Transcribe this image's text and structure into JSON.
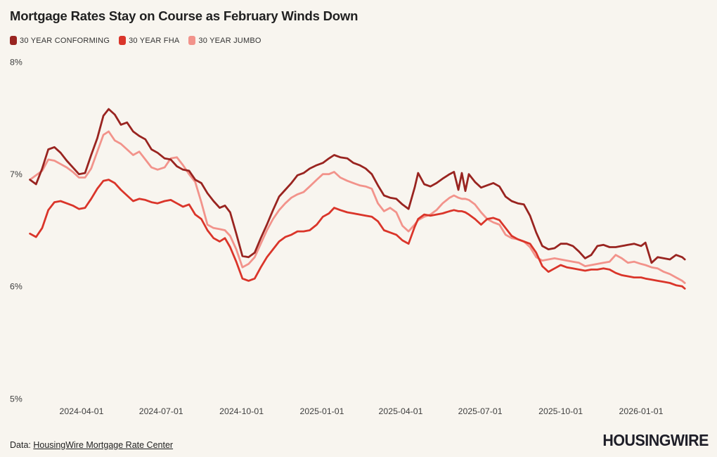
{
  "title": "Mortgage Rates Stay on Course as February Winds Down",
  "colors": {
    "background": "#f8f5ef",
    "title_text": "#212121",
    "axis_text": "#3e3e3e",
    "logo_text": "#1e1e28",
    "conforming": "#992420",
    "fha": "#da352a",
    "jumbo": "#f2938b"
  },
  "legend": [
    {
      "label": "30 YEAR CONFORMING",
      "color": "#992420"
    },
    {
      "label": "30 YEAR FHA",
      "color": "#da352a"
    },
    {
      "label": "30 YEAR JUMBO",
      "color": "#f2938b"
    }
  ],
  "footer": {
    "prefix": "Data:",
    "link_label": "HousingWire Mortgage Rate Center",
    "logo_text": "HOUSINGWIRE"
  },
  "chart_data": {
    "type": "line",
    "title": "Mortgage Rates Stay on Course as February Winds Down",
    "xlabel": "",
    "ylabel": "",
    "ylim": [
      5,
      8
    ],
    "grid": false,
    "legend_position": "top-left",
    "yticks": [
      {
        "label": "8%",
        "value": 8
      },
      {
        "label": "7%",
        "value": 7
      },
      {
        "label": "6%",
        "value": 6
      },
      {
        "label": "5%",
        "value": 5
      }
    ],
    "xticks": [
      "2024-04-01",
      "2024-07-01",
      "2024-10-01",
      "2025-01-01",
      "2025-04-01",
      "2025-07-01",
      "2025-10-01",
      "2026-01-01"
    ],
    "x": [
      "2024-02-02",
      "2024-02-09",
      "2024-02-16",
      "2024-02-23",
      "2024-03-01",
      "2024-03-08",
      "2024-03-15",
      "2024-03-22",
      "2024-03-29",
      "2024-04-05",
      "2024-04-12",
      "2024-04-19",
      "2024-04-26",
      "2024-05-02",
      "2024-05-09",
      "2024-05-16",
      "2024-05-23",
      "2024-05-30",
      "2024-06-06",
      "2024-06-13",
      "2024-06-20",
      "2024-06-27",
      "2024-07-05",
      "2024-07-12",
      "2024-07-19",
      "2024-07-26",
      "2024-08-02",
      "2024-08-09",
      "2024-08-16",
      "2024-08-23",
      "2024-08-30",
      "2024-09-06",
      "2024-09-12",
      "2024-09-18",
      "2024-09-25",
      "2024-10-02",
      "2024-10-09",
      "2024-10-16",
      "2024-10-23",
      "2024-10-30",
      "2024-11-06",
      "2024-11-13",
      "2024-11-20",
      "2024-11-27",
      "2024-12-04",
      "2024-12-11",
      "2024-12-18",
      "2024-12-26",
      "2025-01-02",
      "2025-01-09",
      "2025-01-15",
      "2025-01-22",
      "2025-01-30",
      "2025-02-06",
      "2025-02-13",
      "2025-02-20",
      "2025-02-27",
      "2025-03-06",
      "2025-03-13",
      "2025-03-20",
      "2025-03-27",
      "2025-04-03",
      "2025-04-10",
      "2025-04-17",
      "2025-04-21",
      "2025-04-28",
      "2025-05-05",
      "2025-05-12",
      "2025-05-19",
      "2025-05-27",
      "2025-06-01",
      "2025-06-06",
      "2025-06-10",
      "2025-06-14",
      "2025-06-18",
      "2025-06-25",
      "2025-07-02",
      "2025-07-09",
      "2025-07-16",
      "2025-07-23",
      "2025-07-30",
      "2025-08-06",
      "2025-08-13",
      "2025-08-20",
      "2025-08-27",
      "2025-09-03",
      "2025-09-10",
      "2025-09-17",
      "2025-09-24",
      "2025-10-01",
      "2025-10-08",
      "2025-10-15",
      "2025-10-22",
      "2025-10-29",
      "2025-11-05",
      "2025-11-12",
      "2025-11-19",
      "2025-11-26",
      "2025-12-03",
      "2025-12-10",
      "2025-12-17",
      "2025-12-24",
      "2026-01-01",
      "2026-01-06",
      "2026-01-13",
      "2026-01-20",
      "2026-01-27",
      "2026-02-03",
      "2026-02-10",
      "2026-02-17",
      "2026-02-20"
    ],
    "series": [
      {
        "name": "30 YEAR CONFORMING",
        "color": "#992420",
        "values": [
          6.95,
          6.91,
          7.05,
          7.22,
          7.24,
          7.19,
          7.12,
          7.06,
          7.0,
          7.01,
          7.17,
          7.32,
          7.52,
          7.58,
          7.53,
          7.44,
          7.46,
          7.38,
          7.34,
          7.31,
          7.22,
          7.19,
          7.14,
          7.13,
          7.07,
          7.04,
          7.03,
          6.95,
          6.92,
          6.83,
          6.76,
          6.7,
          6.72,
          6.66,
          6.47,
          6.27,
          6.26,
          6.3,
          6.43,
          6.55,
          6.68,
          6.8,
          6.86,
          6.92,
          6.99,
          7.01,
          7.05,
          7.08,
          7.1,
          7.14,
          7.17,
          7.15,
          7.14,
          7.1,
          7.08,
          7.05,
          7.0,
          6.9,
          6.81,
          6.79,
          6.78,
          6.73,
          6.69,
          6.88,
          7.01,
          6.91,
          6.89,
          6.92,
          6.96,
          7.0,
          7.02,
          6.86,
          7.01,
          6.85,
          7.0,
          6.93,
          6.88,
          6.9,
          6.92,
          6.89,
          6.8,
          6.76,
          6.74,
          6.73,
          6.63,
          6.48,
          6.36,
          6.33,
          6.34,
          6.38,
          6.38,
          6.36,
          6.31,
          6.25,
          6.28,
          6.36,
          6.37,
          6.35,
          6.35,
          6.36,
          6.37,
          6.38,
          6.36,
          6.39,
          6.21,
          6.26,
          6.25,
          6.24,
          6.28,
          6.26,
          6.24
        ]
      },
      {
        "name": "30 YEAR FHA",
        "color": "#da352a",
        "values": [
          6.47,
          6.44,
          6.52,
          6.68,
          6.75,
          6.76,
          6.74,
          6.72,
          6.69,
          6.7,
          6.78,
          6.87,
          6.94,
          6.95,
          6.92,
          6.86,
          6.81,
          6.76,
          6.78,
          6.77,
          6.75,
          6.74,
          6.76,
          6.77,
          6.74,
          6.71,
          6.73,
          6.64,
          6.6,
          6.5,
          6.43,
          6.4,
          6.43,
          6.35,
          6.22,
          6.07,
          6.05,
          6.07,
          6.17,
          6.26,
          6.33,
          6.4,
          6.44,
          6.46,
          6.49,
          6.49,
          6.5,
          6.55,
          6.62,
          6.65,
          6.7,
          6.68,
          6.66,
          6.65,
          6.64,
          6.63,
          6.62,
          6.58,
          6.5,
          6.48,
          6.46,
          6.41,
          6.38,
          6.53,
          6.6,
          6.64,
          6.63,
          6.64,
          6.65,
          6.67,
          6.68,
          6.67,
          6.67,
          6.66,
          6.64,
          6.6,
          6.55,
          6.6,
          6.61,
          6.59,
          6.52,
          6.45,
          6.42,
          6.4,
          6.38,
          6.3,
          6.18,
          6.13,
          6.16,
          6.19,
          6.17,
          6.16,
          6.15,
          6.14,
          6.15,
          6.15,
          6.16,
          6.15,
          6.12,
          6.1,
          6.09,
          6.08,
          6.08,
          6.07,
          6.06,
          6.05,
          6.04,
          6.03,
          6.01,
          6.0,
          5.98
        ]
      },
      {
        "name": "30 YEAR JUMBO",
        "color": "#f2938b",
        "values": [
          6.95,
          6.99,
          7.03,
          7.13,
          7.12,
          7.09,
          7.06,
          7.02,
          6.97,
          6.97,
          7.05,
          7.2,
          7.35,
          7.38,
          7.3,
          7.27,
          7.22,
          7.17,
          7.2,
          7.13,
          7.06,
          7.04,
          7.06,
          7.14,
          7.15,
          7.08,
          7.0,
          6.93,
          6.75,
          6.55,
          6.52,
          6.51,
          6.5,
          6.45,
          6.33,
          6.17,
          6.2,
          6.26,
          6.38,
          6.5,
          6.6,
          6.68,
          6.74,
          6.79,
          6.82,
          6.84,
          6.89,
          6.95,
          7.0,
          7.0,
          7.02,
          6.97,
          6.94,
          6.92,
          6.9,
          6.89,
          6.87,
          6.74,
          6.67,
          6.7,
          6.66,
          6.54,
          6.49,
          6.55,
          6.59,
          6.62,
          6.64,
          6.68,
          6.74,
          6.79,
          6.81,
          6.79,
          6.78,
          6.78,
          6.77,
          6.73,
          6.66,
          6.6,
          6.57,
          6.55,
          6.46,
          6.43,
          6.42,
          6.4,
          6.35,
          6.26,
          6.23,
          6.24,
          6.25,
          6.24,
          6.23,
          6.22,
          6.21,
          6.18,
          6.19,
          6.2,
          6.21,
          6.22,
          6.28,
          6.25,
          6.21,
          6.22,
          6.2,
          6.19,
          6.17,
          6.16,
          6.13,
          6.11,
          6.08,
          6.05,
          6.03
        ]
      }
    ]
  }
}
